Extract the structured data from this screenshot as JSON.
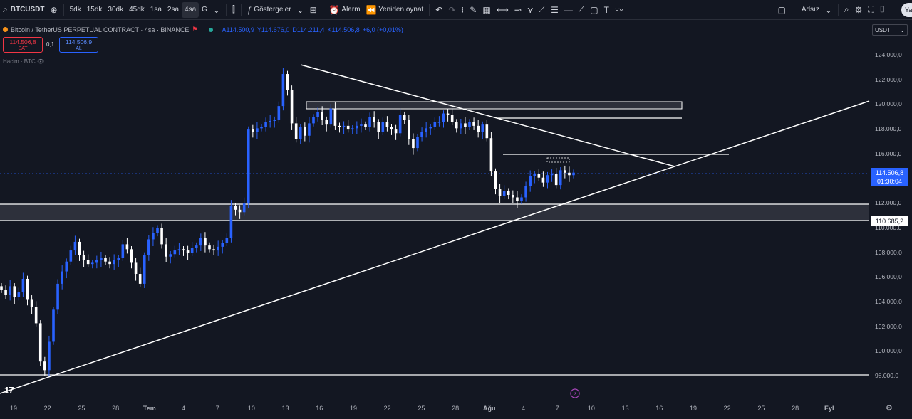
{
  "toolbar": {
    "symbol": "BTCUSDT",
    "intervals": [
      "5dk",
      "15dk",
      "30dk",
      "45dk",
      "1sa",
      "2sa",
      "4sa",
      "G"
    ],
    "active_interval": "4sa",
    "indicators_label": "Göstergeler",
    "alarm_label": "Alarm",
    "replay_label": "Yeniden oynat",
    "layout_name": "Adsız",
    "user_initials": "Ya"
  },
  "legend": {
    "title": "Bitcoin / TetherUS PERPETUAL CONTRACT · 4sa · BINANCE",
    "open": "A114.500,9",
    "high": "Y114.676,0",
    "low": "D114.211,4",
    "close": "K114.506,8",
    "change": "+6,0 (+0,01%)"
  },
  "trade": {
    "sell_price": "114.506,8",
    "sell_label": "SAT",
    "spread": "0,1",
    "buy_price": "114.506,9",
    "buy_label": "AL"
  },
  "volume_label": "Hacim · BTC",
  "axis": {
    "currency": "USDT",
    "y_ticks": [
      "124.000,0",
      "122.000,0",
      "120.000,0",
      "118.000,0",
      "116.000,0",
      "114.000,0",
      "112.000,0",
      "110.000,0",
      "108.000,0",
      "106.000,0",
      "104.000,0",
      "102.000,0",
      "100.000,0",
      "98.000,0"
    ],
    "x_ticks": [
      "19",
      "22",
      "25",
      "28",
      "Tem",
      "4",
      "7",
      "10",
      "13",
      "16",
      "19",
      "22",
      "25",
      "28",
      "Ağu",
      "4",
      "7",
      "10",
      "13",
      "16",
      "19",
      "22",
      "25",
      "28",
      "Eyl"
    ],
    "current_price": "114.506,8",
    "countdown": "01:30:04",
    "level_price": "110.685,2"
  },
  "colors": {
    "up": "#2962ff",
    "down": "#ffffff",
    "background": "#131722",
    "accent": "#2962ff",
    "sell": "#f23645"
  },
  "chart_data": {
    "type": "candlestick",
    "ylim": [
      97000,
      125000
    ],
    "closes": [
      105000,
      104600,
      105300,
      104400,
      104800,
      105900,
      104200,
      103600,
      102300,
      99200,
      98500,
      100800,
      103400,
      105500,
      106500,
      107300,
      108200,
      108900,
      107800,
      107400,
      107100,
      107200,
      107400,
      107600,
      107300,
      107100,
      107400,
      107600,
      108700,
      108300,
      107200,
      106300,
      105500,
      107800,
      109100,
      109600,
      110000,
      108700,
      107700,
      107900,
      108200,
      108300,
      108200,
      108000,
      108400,
      108600,
      109200,
      108600,
      108300,
      108200,
      108500,
      108800,
      109200,
      111800,
      111500,
      111300,
      112000,
      118000,
      117800,
      118100,
      118200,
      118600,
      118700,
      118800,
      119900,
      122500,
      121200,
      118500,
      117200,
      118200,
      117500,
      118500,
      119000,
      119400,
      118800,
      118400,
      119700,
      118300,
      118200,
      118300,
      118000,
      118100,
      118300,
      118400,
      118200,
      119000,
      118600,
      117800,
      118600,
      118200,
      118000,
      117700,
      119200,
      118800,
      117200,
      116500,
      117400,
      117800,
      118100,
      118200,
      118600,
      118600,
      119300,
      119200,
      118600,
      118100,
      118500,
      118200,
      118600,
      118300,
      117800,
      118400,
      117300,
      114600,
      113200,
      112600,
      113000,
      112700,
      112500,
      112200,
      112500,
      113400,
      114200,
      114400,
      114100,
      113700,
      114300,
      114400,
      113500,
      114700,
      114500,
      114300,
      114506
    ]
  }
}
